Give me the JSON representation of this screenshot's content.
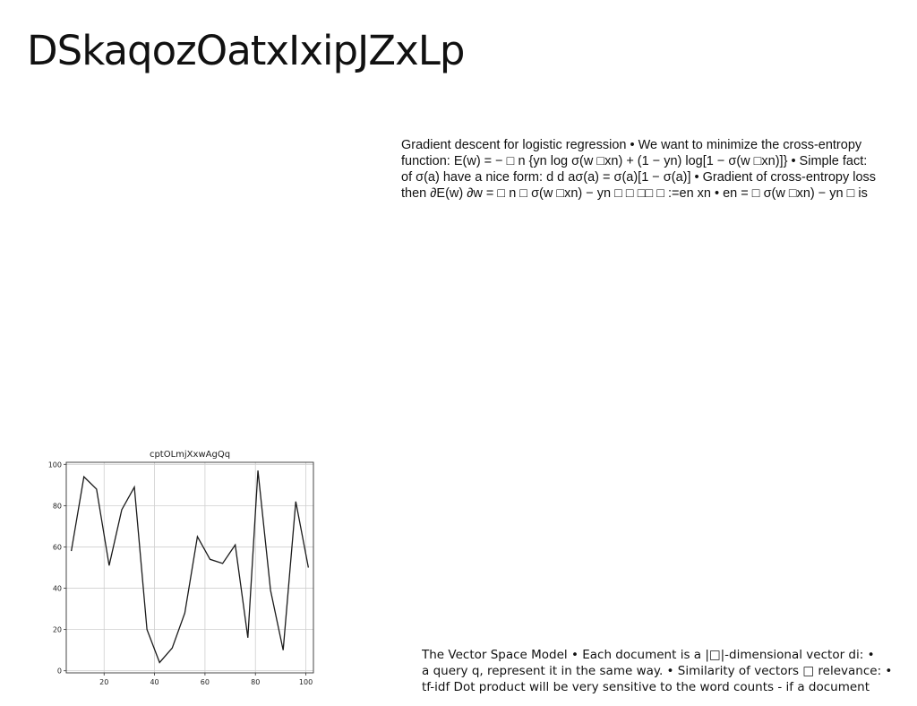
{
  "page": {
    "title": "DSkaqozOatxIxipJZxLp"
  },
  "gradient_text": {
    "lines": [
      "Gradient descent for logistic regression • We want to minimize the cross-entropy",
      "function: E(w) = − □ n {yn log σ(w □xn) + (1 − yn) log[1 − σ(w □xn)]} • Simple fact:",
      "of σ(a) have a nice form: d d aσ(a) = σ(a)[1 − σ(a)] • Gradient of cross-entropy loss",
      "then ∂E(w) ∂w = □ n □ σ(w □xn) − yn □ □ □□ □ :=en xn • en = □ σ(w □xn) − yn □ is"
    ]
  },
  "vsm_text": {
    "lines": [
      "The Vector Space Model • Each document is a |□|-dimensional vector di: •",
      "a query q, represent it in the same way. • Similarity of vectors □ relevance: •",
      " tf-idf Dot product will be very sensitive to the word counts - if a document"
    ]
  },
  "chart_data": {
    "type": "line",
    "title": "cptOLmjXxwAgQq",
    "xlabel": "",
    "ylabel": "",
    "xlim": [
      5,
      103
    ],
    "ylim": [
      -1,
      101
    ],
    "x_ticks": [
      20,
      40,
      60,
      80,
      100
    ],
    "y_ticks": [
      0,
      20,
      40,
      60,
      80,
      100
    ],
    "grid": true,
    "series": [
      {
        "x": [
          7,
          12,
          17,
          22,
          27,
          32,
          37,
          42,
          47,
          52,
          57,
          62,
          67,
          72,
          77,
          81,
          86,
          91,
          96,
          101
        ],
        "y": [
          58,
          94,
          88,
          51,
          78,
          89,
          20,
          4,
          11,
          28,
          65,
          54,
          52,
          61,
          16,
          97,
          39,
          10,
          82,
          50
        ],
        "color": "#1a1a1a"
      }
    ]
  }
}
